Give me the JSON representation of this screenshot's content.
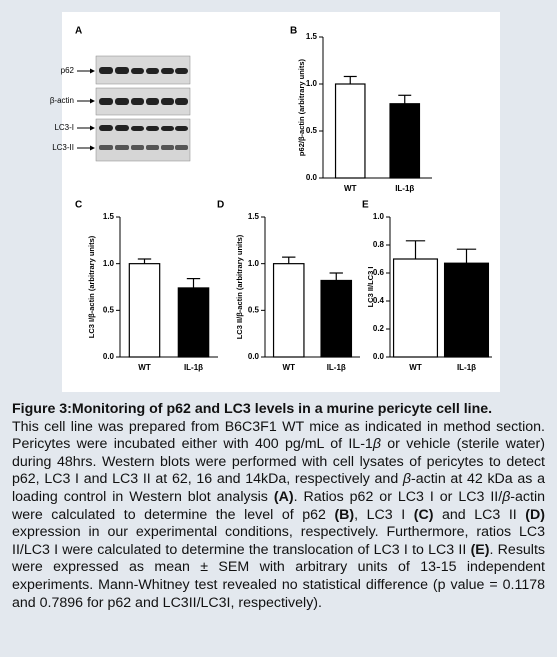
{
  "blot": {
    "panel": "A",
    "labels": [
      "p62",
      "β-actin",
      "LC3-I",
      "LC3-II"
    ]
  },
  "chart_data": [
    {
      "type": "bar",
      "panel": "B",
      "y_label": "p62/β-actin (arbitrary units)",
      "categories": [
        "WT",
        "IL-1β"
      ],
      "values": [
        1.0,
        0.79
      ],
      "errors": [
        0.08,
        0.09
      ],
      "colors": [
        "#ffffff",
        "#000000"
      ],
      "ylim": [
        0,
        1.5
      ],
      "yticks": [
        {
          "value": 0,
          "label": "0.0"
        },
        {
          "value": 0.5,
          "label": "0.5"
        },
        {
          "value": 1,
          "label": "1.0"
        },
        {
          "value": 1.5,
          "label": "1.5"
        }
      ]
    },
    {
      "type": "bar",
      "panel": "C",
      "y_label": "LC3 I/β-actin (arbitrary units)",
      "categories": [
        "WT",
        "IL-1β"
      ],
      "values": [
        1.0,
        0.74
      ],
      "errors": [
        0.05,
        0.1
      ],
      "colors": [
        "#ffffff",
        "#000000"
      ],
      "ylim": [
        0,
        1.5
      ],
      "yticks": [
        {
          "value": 0,
          "label": "0.0"
        },
        {
          "value": 0.5,
          "label": "0.5"
        },
        {
          "value": 1,
          "label": "1.0"
        },
        {
          "value": 1.5,
          "label": "1.5"
        }
      ]
    },
    {
      "type": "bar",
      "panel": "D",
      "y_label": "LC3 II/β-actin (arbitrary units)",
      "categories": [
        "WT",
        "IL-1β"
      ],
      "values": [
        1.0,
        0.82
      ],
      "errors": [
        0.07,
        0.08
      ],
      "colors": [
        "#ffffff",
        "#000000"
      ],
      "ylim": [
        0,
        1.5
      ],
      "yticks": [
        {
          "value": 0,
          "label": "0.0"
        },
        {
          "value": 0.5,
          "label": "0.5"
        },
        {
          "value": 1,
          "label": "1.0"
        },
        {
          "value": 1.5,
          "label": "1.5"
        }
      ]
    },
    {
      "type": "bar",
      "panel": "E",
      "y_label": "LC3 II/LC3 I",
      "categories": [
        "WT",
        "IL-1β"
      ],
      "values": [
        0.7,
        0.67
      ],
      "errors": [
        0.13,
        0.1
      ],
      "colors": [
        "#ffffff",
        "#000000"
      ],
      "ylim": [
        0,
        1.0
      ],
      "yticks": [
        {
          "value": 0,
          "label": "0.0"
        },
        {
          "value": 0.2,
          "label": "0.2"
        },
        {
          "value": 0.4,
          "label": "0.4"
        },
        {
          "value": 0.6,
          "label": "0.6"
        },
        {
          "value": 0.8,
          "label": "0.8"
        },
        {
          "value": 1.0,
          "label": "1.0"
        }
      ]
    }
  ],
  "caption": {
    "title": "Figure 3:Monitoring of p62 and LC3 levels in a murine pericyte cell line.",
    "body": [
      "This cell line was prepared from B6C3F1 WT mice as indicated in method section. Pericytes were incubated either with 400 pg/mL of IL-1",
      "β",
      " or vehicle (sterile water) during 48hrs. Western blots were performed with cell lysates of pericytes to detect p62, LC3 I and LC3 II at 62, 16 and 14kDa, respectively and ",
      "β",
      "-actin at 42 kDa as a loading control in Western blot analysis ",
      "(A)",
      ". Ratios p62 or LC3 I or LC3 II/",
      "β",
      "-actin were calculated to determine the level of p62 ",
      "(B)",
      ", LC3 I ",
      "(C)",
      " and LC3 II ",
      "(D)",
      " expression in our experimental conditions, respectively. Furthermore, ratios LC3 II/LC3 I were calculated to determine the translocation of LC3 I to LC3 II ",
      "(E)",
      ". Results were expressed as mean ± SEM with arbitrary units of 13-15 independent experiments. Mann-Whitney test revealed no statistical difference (p value = 0.1178 and 0.7896 for p62 and LC3II/LC3I, respectively)."
    ]
  }
}
